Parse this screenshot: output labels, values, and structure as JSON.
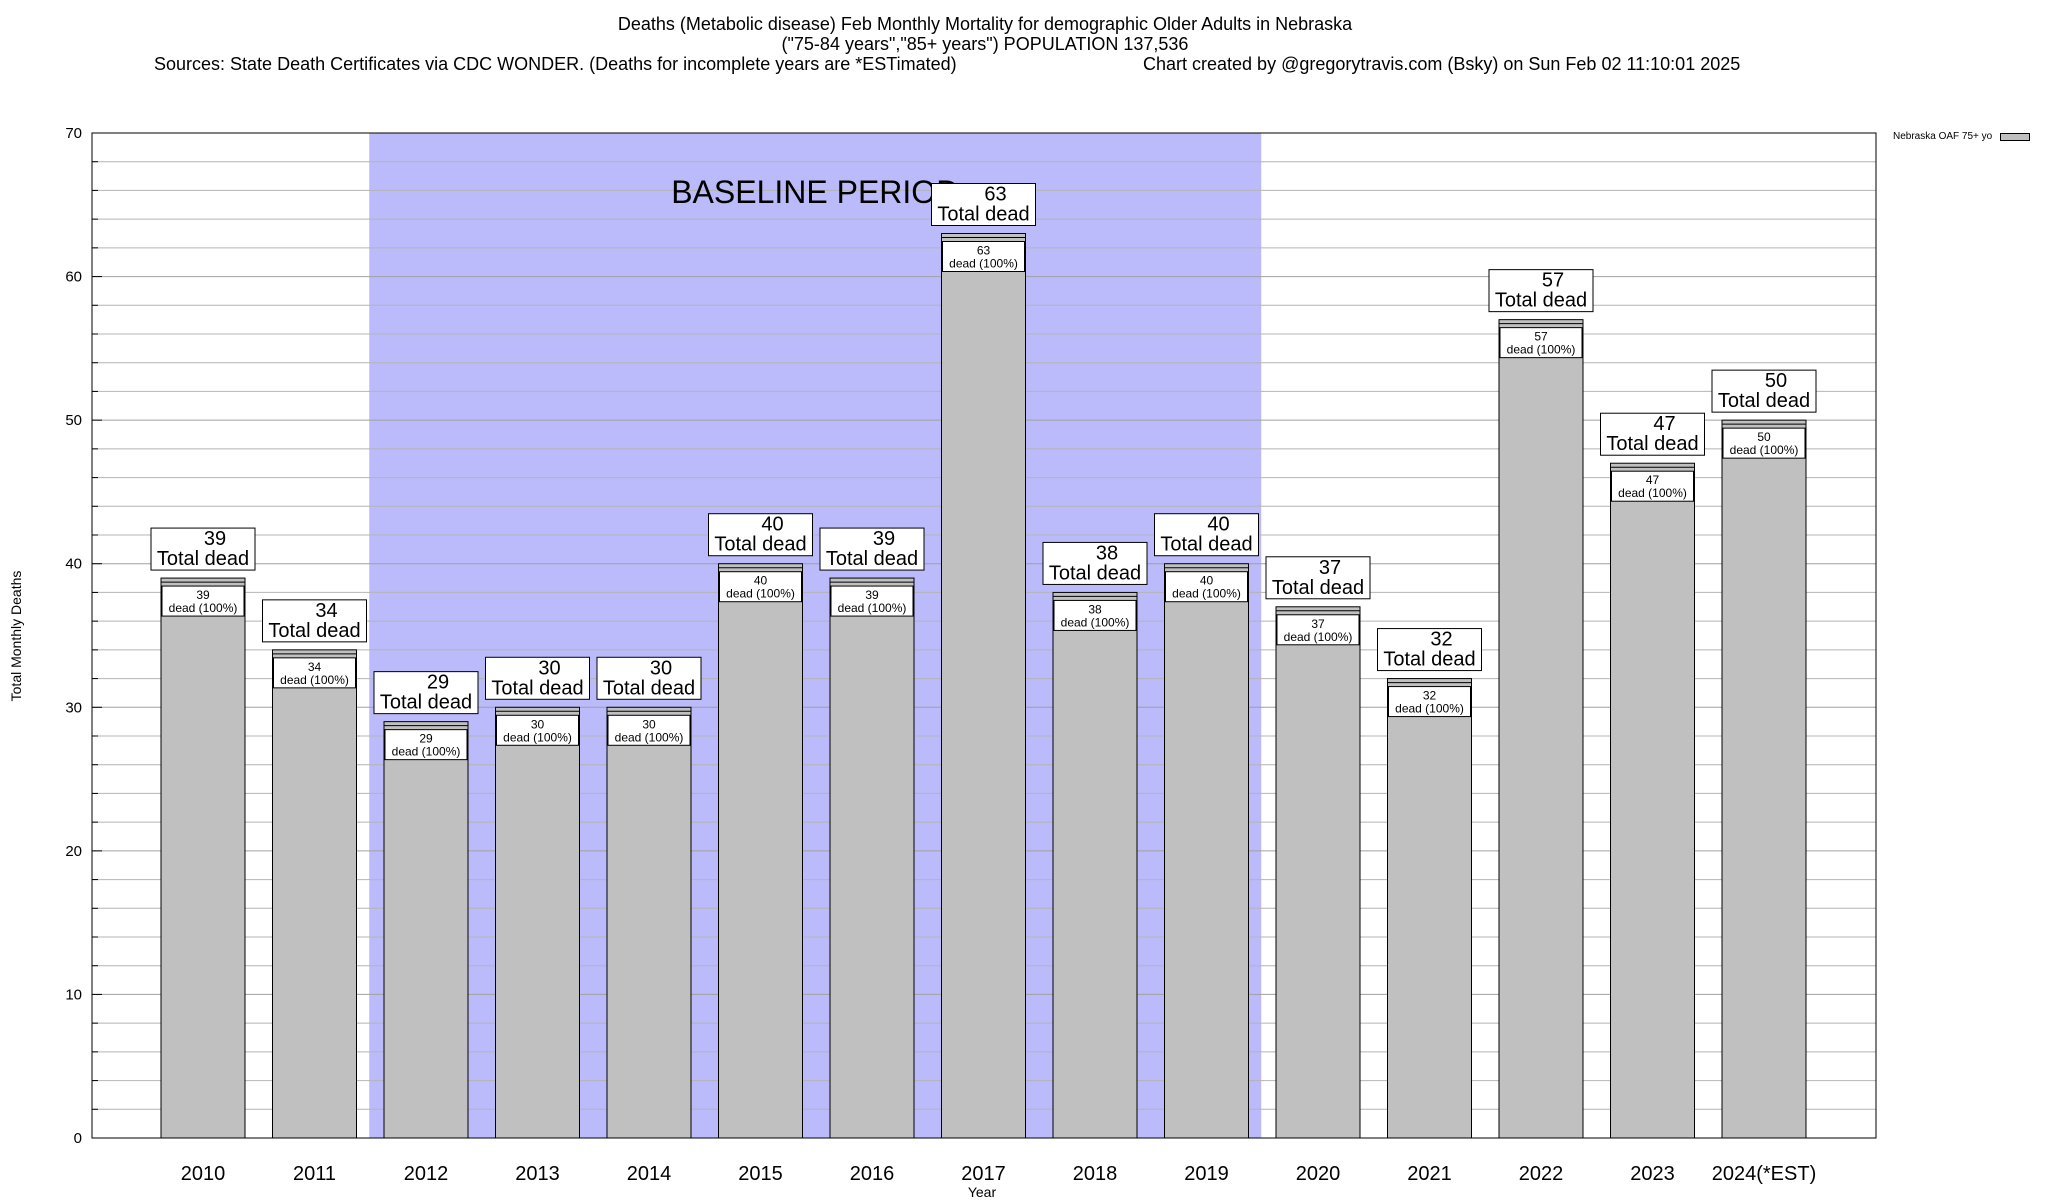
{
  "chart_data": {
    "type": "bar",
    "title": "Deaths (Metabolic disease) Feb Monthly Mortality for demographic Older Adults in Nebraska",
    "subtitle": "(\"75-84 years\",\"85+ years\") POPULATION 137,536",
    "source": "Sources: State Death Certificates via CDC WONDER. (Deaths for incomplete years are *ESTimated)",
    "credit": "Chart created by @gregorytravis.com (Bsky) on Sun Feb 02 11:10:01 2025",
    "xlabel": "Year",
    "ylabel": "Total Monthly Deaths",
    "ylim": [
      0,
      70
    ],
    "yticks": [
      0,
      10,
      20,
      30,
      40,
      50,
      60,
      70
    ],
    "minor_tick_step": 2,
    "grid": true,
    "categories": [
      "2010",
      "2011",
      "2012",
      "2013",
      "2014",
      "2015",
      "2016",
      "2017",
      "2018",
      "2019",
      "2020",
      "2021",
      "2022",
      "2023",
      "2024(*EST)"
    ],
    "series": [
      {
        "name": "Nebraska OAF 75+ yo",
        "values": [
          39,
          34,
          29,
          30,
          30,
          40,
          39,
          63,
          38,
          40,
          37,
          32,
          57,
          47,
          50
        ]
      }
    ],
    "total_label_text": "Total dead",
    "inner_label_text": "dead (100%)",
    "baseline_period": {
      "label": "BASELINE PERIOD",
      "start": "2012",
      "end": "2019"
    },
    "legend_position": "top-right",
    "colors": {
      "bar": "#c0c0c0",
      "baseline": "#bbbbfb",
      "grid": "#b4b4b4"
    }
  }
}
